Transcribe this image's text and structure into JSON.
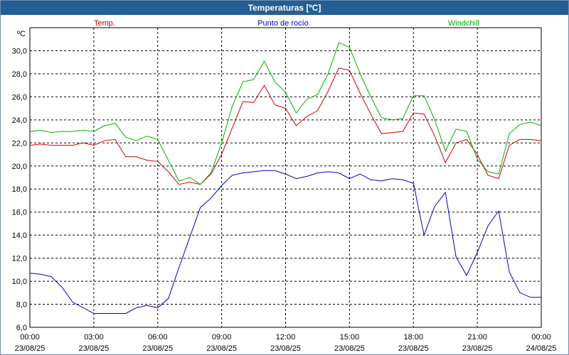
{
  "window": {
    "title": "Temperaturas [ºC]"
  },
  "chart_data": {
    "type": "line",
    "title": "Temperaturas [ºC]",
    "ylabel": "ºC",
    "ylim": [
      6.0,
      32.0
    ],
    "yticks": [
      "6,0",
      "8,0",
      "10,0",
      "12,0",
      "14,0",
      "16,0",
      "18,0",
      "20,0",
      "22,0",
      "24,0",
      "26,0",
      "28,0",
      "30,0"
    ],
    "xlim": [
      0,
      24
    ],
    "xticks": [
      {
        "time": "00:00",
        "date": "23/08/25"
      },
      {
        "time": "03:00",
        "date": "23/08/25"
      },
      {
        "time": "06:00",
        "date": "23/08/25"
      },
      {
        "time": "09:00",
        "date": "23/08/25"
      },
      {
        "time": "12:00",
        "date": "23/08/25"
      },
      {
        "time": "15:00",
        "date": "23/08/25"
      },
      {
        "time": "18:00",
        "date": "23/08/25"
      },
      {
        "time": "21:00",
        "date": "23/08/25"
      },
      {
        "time": "00:00",
        "date": "24/08/25"
      }
    ],
    "grid": true,
    "legend_position": "top",
    "series": [
      {
        "name": "Temp.",
        "color": "#d00000",
        "x": [
          0,
          0.5,
          1,
          1.5,
          2,
          2.5,
          3,
          3.5,
          4,
          4.5,
          5,
          5.5,
          6,
          6.5,
          7,
          7.5,
          8,
          8.5,
          9,
          9.5,
          10,
          10.5,
          11,
          11.5,
          12,
          12.5,
          13,
          13.5,
          14,
          14.5,
          15,
          15.5,
          16,
          16.5,
          17,
          17.5,
          18,
          18.5,
          19,
          19.5,
          20,
          20.5,
          21,
          21.5,
          22,
          22.5,
          23,
          23.5,
          24
        ],
        "values": [
          21.8,
          21.9,
          21.8,
          21.8,
          21.8,
          22.0,
          21.8,
          22.2,
          22.3,
          20.8,
          20.8,
          20.5,
          20.4,
          19.5,
          18.4,
          18.6,
          18.4,
          19.3,
          21.0,
          23.3,
          25.6,
          25.5,
          27.0,
          25.3,
          25.0,
          23.5,
          24.3,
          24.8,
          26.5,
          28.5,
          28.3,
          26.3,
          24.5,
          22.8,
          22.9,
          23.0,
          24.6,
          24.5,
          22.6,
          20.3,
          22.0,
          22.3,
          21.0,
          19.2,
          18.9,
          21.8,
          22.3,
          22.3,
          22.2
        ]
      },
      {
        "name": "Punto de rocío",
        "color": "#0000c0",
        "x": [
          0,
          0.5,
          1,
          1.5,
          2,
          2.5,
          3,
          3.5,
          4,
          4.5,
          5,
          5.5,
          6,
          6.5,
          7,
          7.5,
          8,
          8.5,
          9,
          9.5,
          10,
          10.5,
          11,
          11.5,
          12,
          12.5,
          13,
          13.5,
          14,
          14.5,
          15,
          15.5,
          16,
          16.5,
          17,
          17.5,
          18,
          18.5,
          19,
          19.5,
          20,
          20.5,
          21,
          21.5,
          22,
          22.5,
          23,
          23.5,
          24
        ],
        "values": [
          10.7,
          10.6,
          10.4,
          9.5,
          8.2,
          7.7,
          7.2,
          7.2,
          7.2,
          7.2,
          7.7,
          7.9,
          7.7,
          8.5,
          11.2,
          13.8,
          16.4,
          17.2,
          18.3,
          19.2,
          19.4,
          19.5,
          19.6,
          19.6,
          19.3,
          18.9,
          19.1,
          19.4,
          19.5,
          19.4,
          18.9,
          19.3,
          18.8,
          18.7,
          18.9,
          18.8,
          18.5,
          14.0,
          16.5,
          17.7,
          12.1,
          10.5,
          12.5,
          14.8,
          16.1,
          10.8,
          9.0,
          8.6,
          8.6
        ]
      },
      {
        "name": "Windchill",
        "color": "#00b000",
        "x": [
          0,
          0.5,
          1,
          1.5,
          2,
          2.5,
          3,
          3.5,
          4,
          4.5,
          5,
          5.5,
          6,
          6.5,
          7,
          7.5,
          8,
          8.5,
          9,
          9.5,
          10,
          10.5,
          11,
          11.5,
          12,
          12.5,
          13,
          13.5,
          14,
          14.5,
          15,
          15.5,
          16,
          16.5,
          17,
          17.5,
          18,
          18.5,
          19,
          19.5,
          20,
          20.5,
          21,
          21.5,
          22,
          22.5,
          23,
          23.5,
          24
        ],
        "values": [
          23.0,
          23.1,
          22.9,
          23.0,
          23.0,
          23.1,
          23.0,
          23.5,
          23.7,
          22.5,
          22.2,
          22.6,
          22.3,
          20.5,
          18.7,
          19.0,
          18.4,
          19.4,
          22.0,
          25.2,
          27.3,
          27.5,
          29.1,
          27.3,
          26.4,
          24.6,
          25.8,
          26.2,
          28.0,
          30.7,
          30.3,
          28.0,
          26.0,
          24.2,
          24.0,
          24.1,
          26.1,
          26.1,
          24.0,
          21.3,
          23.2,
          23.0,
          20.6,
          19.5,
          19.3,
          22.8,
          23.6,
          23.8,
          23.5
        ]
      }
    ]
  }
}
